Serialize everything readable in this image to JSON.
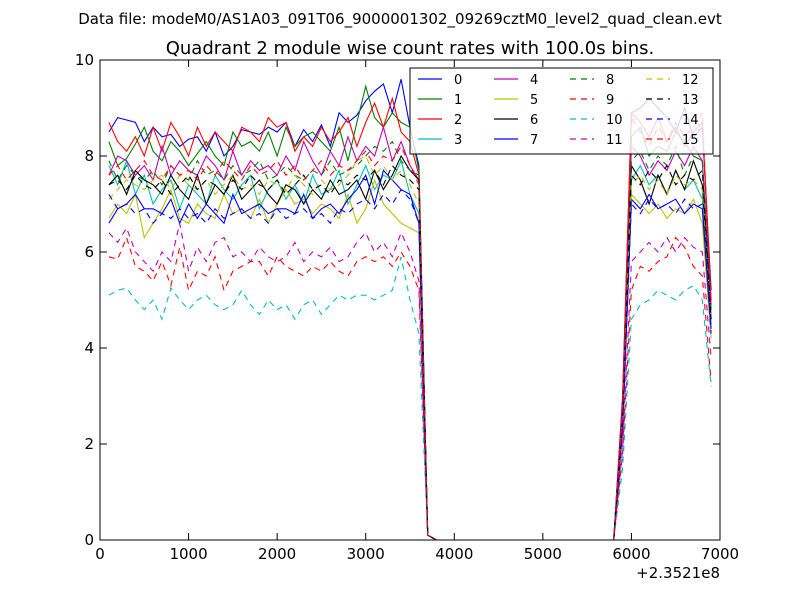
{
  "figure": {
    "suptitle": "Data file: modeM0/AS1A03_091T06_9000001302_09269cztM0_level2_quad_clean.evt"
  },
  "chart_data": {
    "type": "line",
    "title": "Quadrant 2 module wise count rates with 100.0s bins.",
    "xlabel": "",
    "ylabel": "",
    "x_offset_label": "+2.3521e8",
    "xlim": [
      0,
      7000
    ],
    "ylim": [
      0,
      10
    ],
    "xticks": [
      0,
      1000,
      2000,
      3000,
      4000,
      5000,
      6000,
      7000
    ],
    "yticks": [
      0,
      2,
      4,
      6,
      8,
      10
    ],
    "grid": false,
    "legend_position": "top-right",
    "legend_columns": 4,
    "x": [
      100,
      200,
      300,
      400,
      500,
      600,
      700,
      800,
      900,
      1000,
      1100,
      1200,
      1300,
      1400,
      1500,
      1600,
      1700,
      1800,
      1900,
      2000,
      2100,
      2200,
      2300,
      2400,
      2500,
      2600,
      2700,
      2800,
      2900,
      3000,
      3100,
      3200,
      3300,
      3400,
      3500,
      3600,
      3700,
      3800,
      3900,
      4000,
      4100,
      4200,
      4300,
      4400,
      4500,
      4600,
      4700,
      4800,
      4900,
      5000,
      5100,
      5200,
      5300,
      5400,
      5500,
      5600,
      5700,
      5800,
      5900,
      6000,
      6100,
      6200,
      6300,
      6400,
      6500,
      6600,
      6700,
      6800,
      6900
    ],
    "series": [
      {
        "name": "0",
        "color": "#0000ff",
        "dash": "solid",
        "values": [
          8.5,
          8.8,
          8.75,
          8.7,
          8.3,
          8.6,
          8.4,
          8.45,
          8.2,
          8.35,
          8.4,
          8.1,
          8.5,
          8.0,
          8.2,
          8.55,
          8.5,
          8.45,
          8.6,
          8.5,
          8.7,
          8.2,
          8.55,
          8.3,
          8.65,
          8.2,
          8.9,
          8.7,
          8.85,
          9.15,
          9.35,
          9.5,
          8.9,
          9.6,
          8.6,
          7.8,
          0.1,
          0,
          0,
          0,
          0,
          0,
          0,
          0,
          0,
          0,
          0,
          0,
          0,
          0,
          0,
          0,
          0,
          0,
          0,
          0,
          0,
          0,
          3.0,
          8.9,
          9.0,
          9.2,
          9.0,
          8.8,
          8.5,
          9.0,
          8.4,
          8.6,
          5.2
        ]
      },
      {
        "name": "1",
        "color": "#008000",
        "dash": "solid",
        "values": [
          8.3,
          7.8,
          7.95,
          8.25,
          8.6,
          8.1,
          7.9,
          8.3,
          8.1,
          7.8,
          8.05,
          8.3,
          8.0,
          7.8,
          8.5,
          8.2,
          8.3,
          8.1,
          8.5,
          8.0,
          8.6,
          8.2,
          8.4,
          8.5,
          8.3,
          8.1,
          8.6,
          7.9,
          8.7,
          9.45,
          8.8,
          8.6,
          8.9,
          8.7,
          8.6,
          7.7,
          0.1,
          0,
          0,
          0,
          0,
          0,
          0,
          0,
          0,
          0,
          0,
          0,
          0,
          0,
          0,
          0,
          0,
          0,
          0,
          0,
          0,
          0,
          2.8,
          8.4,
          8.6,
          8.0,
          8.2,
          8.1,
          8.5,
          8.3,
          8.0,
          7.9,
          4.8
        ]
      },
      {
        "name": "2",
        "color": "#ff0000",
        "dash": "solid",
        "values": [
          8.7,
          8.3,
          8.1,
          8.4,
          8.0,
          8.6,
          8.1,
          8.7,
          8.4,
          8.0,
          8.6,
          8.2,
          8.5,
          8.3,
          8.1,
          8.6,
          8.5,
          8.3,
          8.8,
          8.6,
          8.7,
          8.1,
          8.4,
          8.2,
          8.6,
          8.3,
          8.5,
          8.8,
          8.2,
          8.7,
          9.1,
          8.6,
          9.2,
          8.5,
          8.3,
          7.6,
          0.1,
          0,
          0,
          0,
          0,
          0,
          0,
          0,
          0,
          0,
          0,
          0,
          0,
          0,
          0,
          0,
          0,
          0,
          0,
          0,
          0,
          0,
          2.9,
          8.9,
          8.7,
          8.4,
          8.8,
          8.3,
          8.6,
          8.2,
          8.5,
          8.7,
          5.0
        ]
      },
      {
        "name": "3",
        "color": "#00bfbf",
        "dash": "solid",
        "values": [
          7.8,
          7.4,
          7.9,
          7.2,
          7.6,
          7.0,
          7.3,
          7.5,
          6.9,
          7.4,
          7.2,
          7.0,
          7.6,
          7.3,
          7.1,
          7.4,
          7.6,
          6.9,
          7.3,
          7.5,
          7.1,
          7.4,
          7.0,
          7.6,
          7.2,
          7.3,
          7.7,
          7.0,
          7.4,
          7.8,
          7.3,
          7.6,
          7.5,
          7.9,
          7.2,
          6.8,
          0.1,
          0,
          0,
          0,
          0,
          0,
          0,
          0,
          0,
          0,
          0,
          0,
          0,
          0,
          0,
          0,
          0,
          0,
          0,
          0,
          0,
          0,
          2.5,
          7.5,
          7.8,
          7.4,
          7.6,
          7.2,
          7.7,
          7.3,
          7.5,
          7.1,
          4.5
        ]
      },
      {
        "name": "4",
        "color": "#bf00bf",
        "dash": "solid",
        "values": [
          7.6,
          8.0,
          7.9,
          7.6,
          7.8,
          7.5,
          8.2,
          7.6,
          7.9,
          7.7,
          7.6,
          8.0,
          7.8,
          7.5,
          8.1,
          7.6,
          7.9,
          7.7,
          7.8,
          7.6,
          8.0,
          7.7,
          8.3,
          7.9,
          7.6,
          8.1,
          7.8,
          8.4,
          7.9,
          8.2,
          8.0,
          8.6,
          7.9,
          8.3,
          7.8,
          7.5,
          0.1,
          0,
          0,
          0,
          0,
          0,
          0,
          0,
          0,
          0,
          0,
          0,
          0,
          0,
          0,
          0,
          0,
          0,
          0,
          0,
          0,
          0,
          2.7,
          8.2,
          8.0,
          7.6,
          7.9,
          7.7,
          8.1,
          7.8,
          8.2,
          7.9,
          4.9
        ]
      },
      {
        "name": "5",
        "color": "#bfbf00",
        "dash": "solid",
        "values": [
          6.7,
          7.0,
          6.8,
          7.2,
          6.3,
          6.6,
          6.9,
          7.3,
          6.7,
          6.6,
          7.0,
          6.8,
          6.7,
          7.2,
          6.8,
          6.9,
          6.7,
          7.1,
          6.6,
          7.0,
          7.3,
          7.0,
          7.1,
          6.8,
          7.0,
          6.9,
          6.7,
          7.2,
          6.6,
          6.9,
          7.5,
          7.0,
          6.8,
          6.6,
          6.5,
          6.4,
          0.1,
          0,
          0,
          0,
          0,
          0,
          0,
          0,
          0,
          0,
          0,
          0,
          0,
          0,
          0,
          0,
          0,
          0,
          0,
          0,
          0,
          0,
          2.4,
          7.2,
          7.0,
          6.8,
          7.0,
          6.7,
          6.9,
          6.8,
          7.1,
          6.6,
          4.2
        ]
      },
      {
        "name": "6",
        "color": "#000000",
        "dash": "solid",
        "values": [
          7.4,
          7.6,
          7.2,
          7.7,
          7.5,
          7.4,
          7.2,
          7.6,
          7.3,
          7.1,
          7.6,
          7.0,
          7.4,
          7.2,
          7.6,
          7.1,
          7.3,
          7.5,
          7.2,
          7.0,
          7.4,
          7.3,
          7.0,
          7.3,
          7.1,
          7.5,
          7.2,
          7.3,
          7.5,
          7.1,
          7.7,
          7.3,
          7.6,
          8.0,
          7.7,
          7.5,
          0.1,
          0,
          0,
          0,
          0,
          0,
          0,
          0,
          0,
          0,
          0,
          0,
          0,
          0,
          0,
          0,
          0,
          0,
          0,
          0,
          0,
          0,
          2.6,
          7.8,
          7.5,
          7.0,
          7.6,
          7.2,
          7.7,
          7.3,
          7.9,
          7.4,
          4.6
        ]
      },
      {
        "name": "7",
        "color": "#0000ff",
        "dash": "solid",
        "values": [
          6.6,
          6.9,
          7.0,
          7.2,
          6.9,
          6.9,
          6.8,
          7.1,
          6.6,
          7.0,
          6.7,
          7.0,
          6.8,
          6.6,
          7.2,
          6.8,
          6.9,
          7.0,
          6.8,
          6.9,
          6.9,
          6.8,
          7.2,
          6.7,
          6.9,
          7.0,
          6.8,
          7.1,
          7.3,
          7.6,
          7.0,
          7.7,
          7.5,
          7.3,
          7.2,
          6.6,
          0.1,
          0,
          0,
          0,
          0,
          0,
          0,
          0,
          0,
          0,
          0,
          0,
          0,
          0,
          0,
          0,
          0,
          0,
          0,
          0,
          0,
          0,
          2.3,
          7.1,
          6.9,
          7.2,
          6.9,
          7.0,
          7.1,
          6.8,
          7.0,
          6.9,
          4.4
        ]
      },
      {
        "name": "8",
        "color": "#008000",
        "dash": "dashed",
        "values": [
          7.9,
          7.5,
          7.8,
          7.6,
          7.5,
          7.7,
          7.4,
          7.8,
          7.6,
          7.5,
          7.9,
          7.6,
          7.7,
          7.5,
          7.8,
          7.6,
          7.7,
          7.9,
          7.5,
          7.6,
          7.8,
          7.6,
          7.5,
          7.7,
          7.6,
          7.9,
          7.6,
          7.7,
          7.8,
          8.0,
          8.2,
          8.1,
          8.3,
          7.9,
          7.7,
          7.6,
          0.1,
          0,
          0,
          0,
          0,
          0,
          0,
          0,
          0,
          0,
          0,
          0,
          0,
          0,
          0,
          0,
          0,
          0,
          0,
          0,
          0,
          0,
          2.6,
          7.9,
          8.1,
          7.7,
          8.0,
          7.8,
          8.2,
          7.6,
          8.0,
          7.9,
          4.7
        ]
      },
      {
        "name": "9",
        "color": "#ff0000",
        "dash": "dashed",
        "values": [
          5.9,
          5.85,
          6.3,
          5.7,
          5.6,
          5.4,
          5.8,
          5.3,
          6.1,
          5.2,
          5.6,
          5.5,
          5.9,
          5.2,
          5.6,
          5.7,
          5.8,
          5.8,
          5.5,
          5.9,
          5.7,
          5.6,
          5.5,
          5.7,
          5.6,
          5.8,
          5.6,
          5.5,
          5.8,
          5.9,
          5.8,
          5.9,
          5.7,
          6.0,
          5.7,
          5.2,
          0.1,
          0,
          0,
          0,
          0,
          0,
          0,
          0,
          0,
          0,
          0,
          0,
          0,
          0,
          0,
          0,
          0,
          0,
          0,
          0,
          0,
          0,
          1.8,
          5.2,
          5.7,
          5.6,
          5.8,
          5.9,
          6.3,
          6.1,
          5.7,
          5.5,
          3.3
        ]
      },
      {
        "name": "10",
        "color": "#00bfbf",
        "dash": "dashed",
        "values": [
          5.1,
          5.2,
          5.25,
          5.0,
          4.8,
          5.0,
          4.6,
          5.25,
          5.0,
          4.8,
          5.0,
          5.1,
          4.9,
          4.8,
          4.9,
          5.2,
          4.9,
          4.7,
          5.0,
          4.8,
          4.9,
          4.6,
          4.9,
          5.0,
          4.7,
          4.9,
          5.1,
          5.0,
          5.1,
          5.1,
          5.0,
          5.1,
          5.2,
          5.9,
          5.0,
          4.3,
          0.1,
          0,
          0,
          0,
          0,
          0,
          0,
          0,
          0,
          0,
          0,
          0,
          0,
          0,
          0,
          0,
          0,
          0,
          0,
          0,
          0,
          0,
          1.5,
          4.6,
          4.9,
          5.0,
          5.2,
          5.1,
          5.0,
          5.2,
          5.3,
          5.0,
          3.2
        ]
      },
      {
        "name": "11",
        "color": "#bf00bf",
        "dash": "dashed",
        "values": [
          6.4,
          6.2,
          6.5,
          6.0,
          5.8,
          5.6,
          6.0,
          5.8,
          6.6,
          5.6,
          6.1,
          5.8,
          6.2,
          6.3,
          5.9,
          6.0,
          5.8,
          6.1,
          5.9,
          5.8,
          5.9,
          6.2,
          5.8,
          6.0,
          5.9,
          6.1,
          5.8,
          5.9,
          6.2,
          6.4,
          6.0,
          6.2,
          5.9,
          6.4,
          6.0,
          5.4,
          0.1,
          0,
          0,
          0,
          0,
          0,
          0,
          0,
          0,
          0,
          0,
          0,
          0,
          0,
          0,
          0,
          0,
          0,
          0,
          0,
          0,
          0,
          1.9,
          5.8,
          6.0,
          6.2,
          6.0,
          6.3,
          6.0,
          6.3,
          6.1,
          6.0,
          3.8
        ]
      },
      {
        "name": "12",
        "color": "#bfbf00",
        "dash": "dashed",
        "values": [
          7.1,
          7.3,
          7.5,
          7.4,
          7.3,
          7.5,
          7.6,
          7.3,
          7.6,
          7.4,
          7.3,
          7.5,
          7.2,
          7.4,
          7.6,
          7.3,
          7.4,
          7.2,
          7.5,
          7.4,
          7.3,
          7.6,
          7.4,
          7.2,
          7.5,
          7.3,
          7.4,
          7.6,
          7.9,
          8.0,
          7.6,
          7.8,
          7.5,
          7.7,
          7.4,
          7.0,
          0.1,
          0,
          0,
          0,
          0,
          0,
          0,
          0,
          0,
          0,
          0,
          0,
          0,
          0,
          0,
          0,
          0,
          0,
          0,
          0,
          0,
          0,
          2.5,
          7.4,
          7.6,
          7.3,
          7.5,
          7.2,
          7.6,
          7.4,
          7.5,
          7.3,
          4.6
        ]
      },
      {
        "name": "13",
        "color": "#000000",
        "dash": "dashed",
        "values": [
          7.4,
          7.5,
          7.3,
          7.6,
          7.4,
          7.3,
          7.5,
          7.2,
          7.4,
          7.6,
          7.3,
          7.5,
          7.4,
          7.2,
          7.5,
          7.3,
          7.6,
          7.4,
          7.3,
          7.5,
          7.2,
          7.4,
          7.6,
          7.3,
          7.4,
          7.2,
          7.5,
          7.4,
          7.6,
          7.5,
          7.7,
          7.4,
          7.8,
          7.6,
          7.5,
          7.3,
          0.1,
          0,
          0,
          0,
          0,
          0,
          0,
          0,
          0,
          0,
          0,
          0,
          0,
          0,
          0,
          0,
          0,
          0,
          0,
          0,
          0,
          0,
          2.5,
          7.6,
          7.4,
          7.7,
          7.5,
          7.8,
          7.4,
          7.6,
          7.5,
          7.7,
          4.6
        ]
      },
      {
        "name": "14",
        "color": "#0000ff",
        "dash": "dashed",
        "values": [
          7.2,
          6.9,
          7.0,
          6.8,
          6.9,
          6.6,
          6.8,
          6.7,
          6.9,
          6.7,
          6.8,
          6.6,
          6.9,
          6.7,
          6.8,
          6.9,
          6.7,
          6.8,
          6.6,
          6.9,
          6.7,
          6.8,
          6.9,
          6.7,
          6.8,
          6.6,
          6.9,
          6.8,
          7.0,
          7.1,
          6.9,
          7.2,
          7.0,
          7.3,
          7.1,
          6.6,
          0.1,
          0,
          0,
          0,
          0,
          0,
          0,
          0,
          0,
          0,
          0,
          0,
          0,
          0,
          0,
          0,
          0,
          0,
          0,
          0,
          0,
          0,
          2.3,
          7.0,
          6.8,
          7.1,
          6.9,
          7.0,
          6.8,
          7.1,
          6.9,
          7.0,
          4.3
        ]
      },
      {
        "name": "15",
        "color": "#ff0000",
        "dash": "dashed",
        "values": [
          7.6,
          7.8,
          7.5,
          7.7,
          7.9,
          7.6,
          7.5,
          7.8,
          7.6,
          7.7,
          7.5,
          7.8,
          7.6,
          7.9,
          7.7,
          7.5,
          7.8,
          7.6,
          7.7,
          7.9,
          7.6,
          7.8,
          7.5,
          7.7,
          7.9,
          7.6,
          7.8,
          7.7,
          7.9,
          8.1,
          7.8,
          8.0,
          7.9,
          8.2,
          7.8,
          7.4,
          0.1,
          0,
          0,
          0,
          0,
          0,
          0,
          0,
          0,
          0,
          0,
          0,
          0,
          0,
          0,
          0,
          0,
          0,
          0,
          0,
          0,
          0,
          2.6,
          8.8,
          8.5,
          8.2,
          8.6,
          8.3,
          8.7,
          8.4,
          8.6,
          8.9,
          4.9
        ]
      }
    ]
  }
}
